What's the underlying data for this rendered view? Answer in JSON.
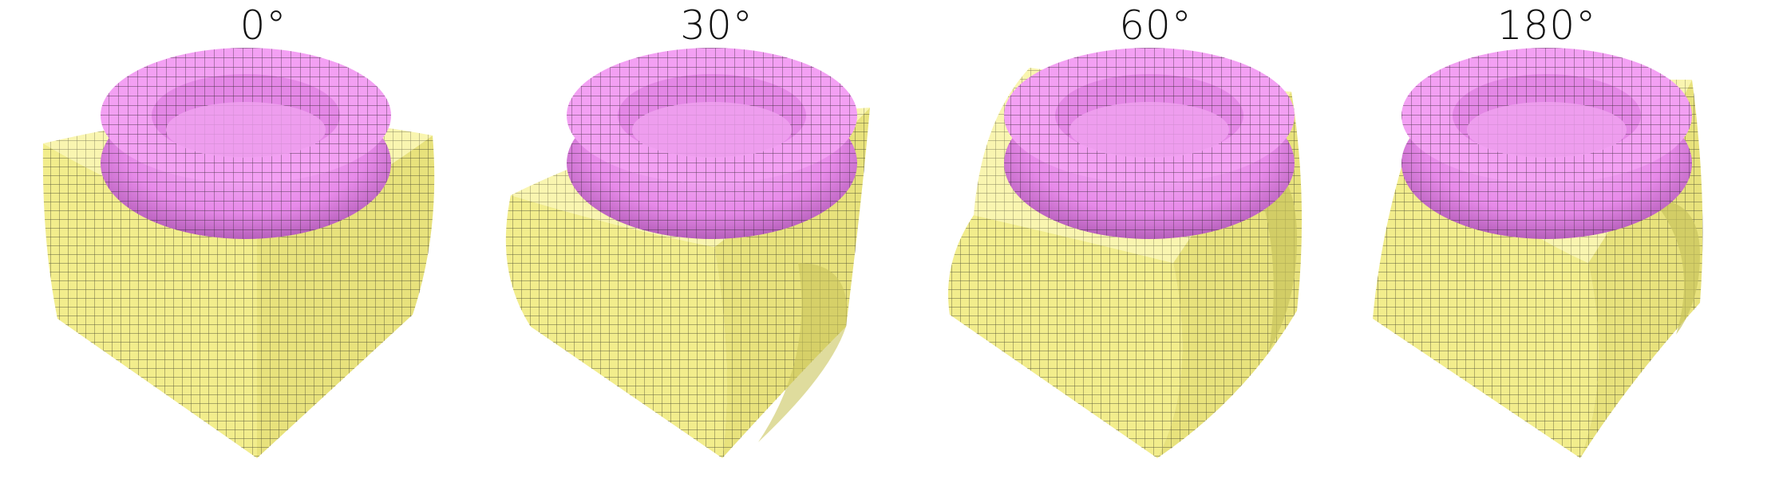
{
  "panels": [
    {
      "title": "0°",
      "twist_deg": 0
    },
    {
      "title": "30°",
      "twist_deg": 30
    },
    {
      "title": "60°",
      "twist_deg": 60
    },
    {
      "title": "180°",
      "twist_deg": 180
    }
  ],
  "colors": {
    "block_light": "#f7f29a",
    "block_mid": "#ece882",
    "block_dark": "#c9c45c",
    "block_grid": "#3a3a2a",
    "torus_light": "#f6a6f6",
    "torus_mid": "#e583e8",
    "torus_dark": "#b25ab8",
    "torus_grid": "#3a2a3a",
    "background": "#ffffff"
  }
}
